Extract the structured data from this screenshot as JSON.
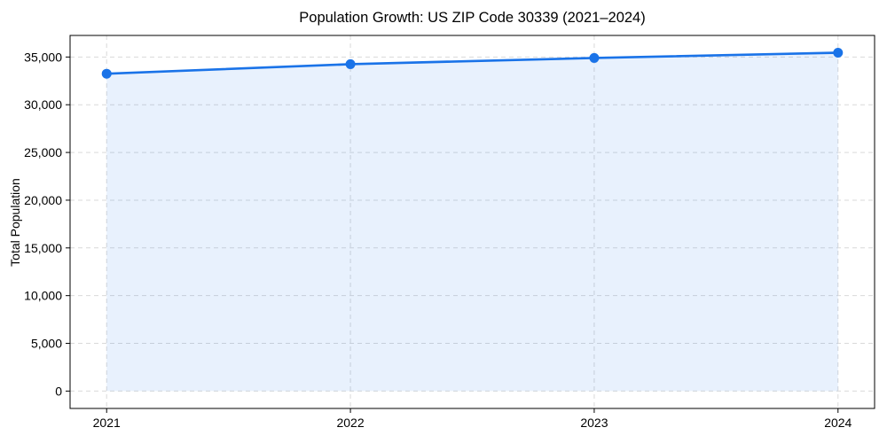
{
  "figure": {
    "background": "#ffffff"
  },
  "chart_data": {
    "type": "line",
    "title": "Population Growth: US ZIP Code 30339 (2021–2024)",
    "xlabel": "",
    "ylabel": "Total Population",
    "x": [
      2021,
      2022,
      2023,
      2024
    ],
    "x_tick_labels": [
      "2021",
      "2022",
      "2023",
      "2024"
    ],
    "series": [
      {
        "name": "Total Population",
        "values": [
          33250,
          34250,
          34900,
          35450
        ],
        "color": "#1a73e8",
        "marker": "circle",
        "area_fill": true,
        "fill_baseline": 0,
        "fill_opacity": 0.1
      }
    ],
    "yticks": [
      0,
      5000,
      10000,
      15000,
      20000,
      25000,
      30000,
      35000
    ],
    "y_tick_labels": [
      "0",
      "5,000",
      "10,000",
      "15,000",
      "20,000",
      "25,000",
      "30,000",
      "35,000"
    ],
    "xlim": [
      2020.85,
      2024.15
    ],
    "ylim": [
      -1820,
      37260
    ],
    "grid": true,
    "grid_style": "dashed",
    "legend": "none",
    "colors": {
      "line": "#1a73e8",
      "marker": "#1a73e8",
      "area": "#e8f1fc",
      "grid": "#d9d9d9",
      "spine": "#000000",
      "text": "#000000",
      "background": "#ffffff"
    }
  }
}
